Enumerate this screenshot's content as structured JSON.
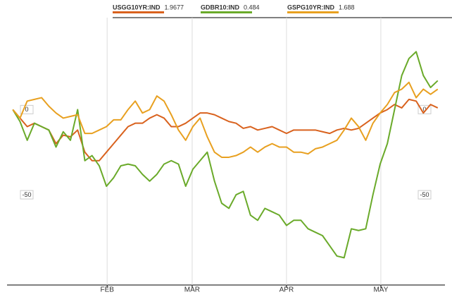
{
  "chart_data": {
    "type": "line",
    "months": [
      {
        "value": 13.1,
        "label": "FEB"
      },
      {
        "value": 24.9,
        "label": "MAR"
      },
      {
        "value": 38,
        "label": "APR"
      },
      {
        "value": 51.1,
        "label": "MAY"
      }
    ],
    "xlim": [
      -0.8,
      60
    ],
    "ylim": [
      -103,
      54
    ],
    "yticks": [
      0,
      -50
    ],
    "grid": true,
    "series": [
      {
        "name": "USGG10YR:IND",
        "last": 1.9677,
        "color": "#d9621e",
        "values": [
          0,
          -5,
          -10,
          -8,
          -10,
          -12,
          -20,
          -15,
          -16,
          -12,
          -25,
          -30,
          -30,
          -25,
          -20,
          -15,
          -10,
          -8,
          -8,
          -5,
          -3,
          -5,
          -10,
          -10,
          -8,
          -5,
          -2,
          -2,
          -3,
          -5,
          -7,
          -8,
          -11,
          -10,
          -12,
          -11,
          -10,
          -12,
          -14,
          -12,
          -12,
          -12,
          -12,
          -13,
          -14,
          -12,
          -11,
          -12,
          -11,
          -8,
          -5,
          -2,
          0,
          3,
          1,
          6,
          5,
          -2,
          3,
          1
        ]
      },
      {
        "name": "GDBR10:IND",
        "last": 0.484,
        "color": "#6aaa2a",
        "values": [
          0,
          -7,
          -18,
          -8,
          -10,
          -12,
          -22,
          -13,
          -18,
          0,
          -30,
          -27,
          -33,
          -45,
          -40,
          -33,
          -32,
          -33,
          -38,
          -42,
          -38,
          -32,
          -30,
          -32,
          -45,
          -35,
          -30,
          -25,
          -42,
          -55,
          -58,
          -50,
          -48,
          -62,
          -65,
          -58,
          -60,
          -62,
          -68,
          -65,
          -65,
          -70,
          -72,
          -74,
          -80,
          -86,
          -87,
          -70,
          -71,
          -70,
          -50,
          -32,
          -20,
          0,
          20,
          30,
          34,
          20,
          13,
          17
        ]
      },
      {
        "name": "GSPG10YR:IND",
        "last": 1.688,
        "color": "#e8a020",
        "values": [
          0,
          -5,
          5,
          6,
          7,
          2,
          -2,
          -5,
          -4,
          -3,
          -14,
          -14,
          -12,
          -10,
          -6,
          -6,
          0,
          5,
          -2,
          0,
          8,
          5,
          -3,
          -12,
          -18,
          -10,
          -5,
          -16,
          -25,
          -28,
          -28,
          -27,
          -25,
          -22,
          -25,
          -22,
          -20,
          -22,
          -22,
          -25,
          -25,
          -26,
          -23,
          -22,
          -20,
          -18,
          -12,
          -5,
          -10,
          -18,
          -8,
          -2,
          3,
          10,
          12,
          16,
          7,
          12,
          9,
          12
        ]
      }
    ]
  }
}
